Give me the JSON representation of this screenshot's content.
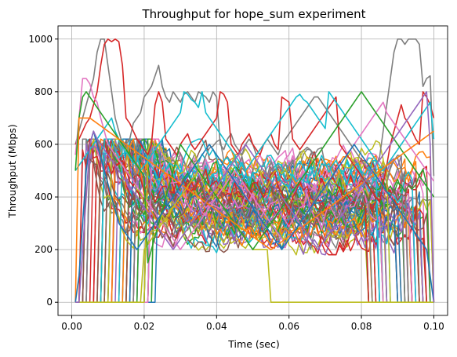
{
  "chart_data": {
    "type": "line",
    "title": "Throughput for hope_sum experiment",
    "xlabel": "Time (sec)",
    "ylabel": "Throughput (Mbps)",
    "xlim": [
      -0.0038,
      0.1038
    ],
    "ylim": [
      -50,
      1050
    ],
    "xticks": [
      0.0,
      0.02,
      0.04,
      0.06,
      0.08,
      0.1
    ],
    "xtick_labels": [
      "0.00",
      "0.02",
      "0.04",
      "0.06",
      "0.08",
      "0.10"
    ],
    "yticks": [
      0,
      200,
      400,
      600,
      800,
      1000
    ],
    "ytick_labels": [
      "0",
      "200",
      "400",
      "600",
      "800",
      "1000"
    ],
    "grid": true,
    "legend": "none",
    "palette": [
      "#1f77b4",
      "#ff7f0e",
      "#2ca02c",
      "#d62728",
      "#9467bd",
      "#8c564b",
      "#e377c2",
      "#7f7f7f",
      "#bcbd22",
      "#17becf"
    ],
    "x_sampling": {
      "start": 0.001,
      "step": 0.001,
      "count": 100
    },
    "bulk_series_count": 70,
    "bulk_series_note": "dense bundle of many flows mostly between 200 and 600 Mbps",
    "series": [
      {
        "color": "#7f7f7f",
        "y": [
          600,
          650,
          700,
          750,
          800,
          850,
          950,
          1000,
          1000,
          900,
          800,
          700,
          650,
          600,
          600,
          620,
          680,
          700,
          720,
          780,
          800,
          820,
          860,
          900,
          820,
          780,
          760,
          800,
          780,
          760,
          790,
          800,
          780,
          760,
          800,
          790,
          780,
          760,
          800,
          780,
          600,
          580,
          620,
          640,
          600,
          580,
          560,
          600,
          620,
          600,
          560,
          580,
          600,
          620,
          600,
          580,
          560,
          600,
          620,
          640,
          660,
          680,
          700,
          720,
          740,
          760,
          780,
          780,
          760,
          740,
          720,
          700,
          680,
          660,
          640,
          620,
          600,
          580,
          560,
          540,
          520,
          500,
          500,
          520,
          550,
          650,
          750,
          850,
          950,
          1000,
          1000,
          980,
          1000,
          1000,
          1000,
          980,
          820,
          850,
          860,
          480
        ]
      },
      {
        "color": "#d62728",
        "y": [
          600,
          620,
          650,
          680,
          700,
          750,
          800,
          900,
          980,
          1000,
          990,
          1000,
          990,
          900,
          700,
          680,
          650,
          620,
          600,
          580,
          560,
          600,
          750,
          800,
          760,
          620,
          600,
          580,
          560,
          600,
          620,
          640,
          600,
          580,
          600,
          620,
          640,
          660,
          680,
          700,
          800,
          790,
          760,
          600,
          580,
          560,
          600,
          620,
          640,
          600,
          580,
          560,
          600,
          620,
          640,
          600,
          580,
          780,
          770,
          760,
          620,
          600,
          580,
          600,
          620,
          640,
          660,
          680,
          700,
          720,
          740,
          760,
          780,
          600,
          580,
          560,
          540,
          520,
          500,
          480,
          460,
          440,
          420,
          400,
          380,
          450,
          520,
          600,
          650,
          700,
          750,
          700,
          680,
          650,
          620,
          600,
          800,
          780,
          750,
          700
        ]
      },
      {
        "color": "#17becf",
        "y": [
          500,
          520,
          540,
          560,
          580,
          600,
          620,
          640,
          660,
          680,
          700,
          650,
          620,
          600,
          580,
          560,
          540,
          520,
          500,
          520,
          540,
          560,
          580,
          600,
          620,
          640,
          660,
          680,
          700,
          720,
          800,
          790,
          770,
          760,
          740,
          800,
          720,
          700,
          680,
          660,
          640,
          620,
          600,
          580,
          560,
          540,
          520,
          500,
          520,
          540,
          560,
          580,
          600,
          620,
          640,
          660,
          680,
          700,
          720,
          740,
          760,
          780,
          790,
          770,
          760,
          740,
          720,
          700,
          680,
          660,
          800,
          780,
          760,
          740,
          720,
          700,
          680,
          660,
          640,
          620,
          600,
          580,
          560,
          540,
          520,
          500,
          520,
          540,
          560,
          580,
          600,
          620,
          640,
          660,
          680,
          700,
          720,
          740,
          760,
          620
        ]
      },
      {
        "color": "#e377c2",
        "y": [
          560,
          700,
          850,
          850,
          830,
          780,
          760,
          700,
          650,
          600,
          580,
          560,
          540,
          520,
          500,
          480,
          460,
          440,
          420,
          400,
          380,
          360,
          340,
          320,
          300,
          280,
          260,
          240,
          220,
          200,
          220,
          240,
          260,
          280,
          300,
          320,
          340,
          360,
          380,
          400,
          420,
          440,
          460,
          480,
          500,
          480,
          460,
          440,
          420,
          400,
          380,
          360,
          340,
          320,
          300,
          280,
          260,
          240,
          220,
          240,
          260,
          280,
          300,
          320,
          340,
          360,
          380,
          400,
          420,
          440,
          460,
          480,
          500,
          520,
          540,
          560,
          580,
          600,
          620,
          640,
          660,
          680,
          700,
          720,
          740,
          760,
          720,
          700,
          680,
          660,
          640,
          620,
          600,
          580,
          560,
          540,
          520,
          500,
          480,
          460
        ]
      },
      {
        "color": "#bcbd22",
        "y": [
          0,
          0,
          0,
          0,
          0,
          0,
          0,
          0,
          0,
          0,
          0,
          0,
          0,
          0,
          0,
          0,
          0,
          0,
          0,
          200,
          220,
          240,
          260,
          280,
          300,
          320,
          340,
          360,
          380,
          400,
          420,
          440,
          460,
          480,
          500,
          480,
          460,
          440,
          420,
          400,
          380,
          360,
          340,
          320,
          300,
          280,
          260,
          240,
          220,
          200,
          200,
          200,
          200,
          200,
          0,
          0,
          0,
          0,
          0,
          0,
          0,
          0,
          0,
          0,
          0,
          0,
          0,
          0,
          0,
          0,
          0,
          0,
          0,
          0,
          0,
          0,
          0,
          0,
          0,
          0,
          0,
          0,
          0,
          0,
          0,
          0,
          0,
          0,
          0,
          0,
          0,
          0,
          0,
          0,
          0,
          0,
          0,
          0,
          0,
          0
        ]
      },
      {
        "color": "#2ca02c",
        "y": [
          500,
          700,
          780,
          800,
          780,
          760,
          740,
          720,
          700,
          680,
          660,
          640,
          620,
          600,
          580,
          560,
          540,
          520,
          500,
          480,
          150,
          200,
          250,
          300,
          350,
          400,
          450,
          500,
          550,
          600,
          580,
          560,
          540,
          520,
          500,
          480,
          460,
          440,
          420,
          400,
          380,
          360,
          340,
          320,
          300,
          280,
          260,
          240,
          220,
          200,
          220,
          240,
          260,
          280,
          300,
          320,
          340,
          360,
          380,
          400,
          420,
          440,
          460,
          480,
          500,
          520,
          540,
          560,
          580,
          600,
          620,
          640,
          660,
          680,
          700,
          720,
          740,
          760,
          780,
          800,
          780,
          760,
          740,
          720,
          700,
          680,
          660,
          640,
          620,
          600,
          580,
          560,
          540,
          520,
          500,
          480,
          460,
          440,
          420,
          400
        ]
      },
      {
        "color": "#ff7f0e",
        "y": [
          0,
          700,
          700,
          700,
          700,
          690,
          680,
          670,
          660,
          650,
          640,
          630,
          620,
          610,
          600,
          590,
          580,
          570,
          560,
          550,
          540,
          530,
          520,
          510,
          500,
          490,
          480,
          470,
          460,
          450,
          440,
          430,
          420,
          410,
          400,
          390,
          380,
          370,
          360,
          350,
          340,
          330,
          320,
          310,
          300,
          290,
          280,
          270,
          260,
          250,
          240,
          230,
          220,
          210,
          200,
          210,
          220,
          230,
          240,
          250,
          260,
          270,
          280,
          290,
          300,
          310,
          320,
          330,
          340,
          350,
          360,
          370,
          380,
          390,
          400,
          410,
          420,
          430,
          440,
          450,
          460,
          470,
          480,
          490,
          500,
          510,
          520,
          530,
          540,
          550,
          560,
          570,
          580,
          590,
          600,
          610,
          620,
          630,
          640,
          650
        ]
      },
      {
        "color": "#1f77b4",
        "y": [
          0,
          100,
          300,
          500,
          600,
          650,
          600,
          550,
          500,
          450,
          400,
          350,
          300,
          280,
          260,
          240,
          220,
          200,
          220,
          240,
          260,
          280,
          300,
          320,
          340,
          360,
          380,
          400,
          420,
          440,
          460,
          480,
          500,
          520,
          540,
          560,
          580,
          600,
          580,
          560,
          540,
          520,
          500,
          480,
          460,
          440,
          420,
          400,
          380,
          360,
          340,
          320,
          300,
          280,
          260,
          240,
          220,
          200,
          220,
          240,
          260,
          280,
          300,
          320,
          340,
          360,
          380,
          400,
          420,
          440,
          460,
          480,
          500,
          520,
          540,
          560,
          580,
          600,
          580,
          560,
          540,
          520,
          500,
          480,
          460,
          440,
          420,
          400,
          380,
          360,
          340,
          320,
          300,
          280,
          260,
          240,
          220,
          200,
          100,
          0
        ]
      },
      {
        "color": "#9467bd",
        "y": [
          0,
          0,
          200,
          400,
          600,
          650,
          620,
          600,
          580,
          560,
          540,
          520,
          500,
          480,
          460,
          440,
          420,
          400,
          380,
          360,
          340,
          320,
          300,
          280,
          260,
          240,
          220,
          200,
          220,
          240,
          260,
          280,
          300,
          320,
          340,
          360,
          380,
          400,
          420,
          440,
          460,
          480,
          500,
          520,
          540,
          560,
          580,
          600,
          580,
          560,
          540,
          520,
          500,
          480,
          460,
          440,
          420,
          400,
          380,
          360,
          340,
          320,
          300,
          280,
          260,
          240,
          220,
          200,
          220,
          240,
          260,
          280,
          300,
          320,
          340,
          360,
          380,
          400,
          420,
          440,
          460,
          480,
          500,
          520,
          540,
          560,
          580,
          600,
          620,
          640,
          660,
          680,
          700,
          720,
          740,
          760,
          780,
          800,
          600,
          0
        ]
      }
    ]
  }
}
